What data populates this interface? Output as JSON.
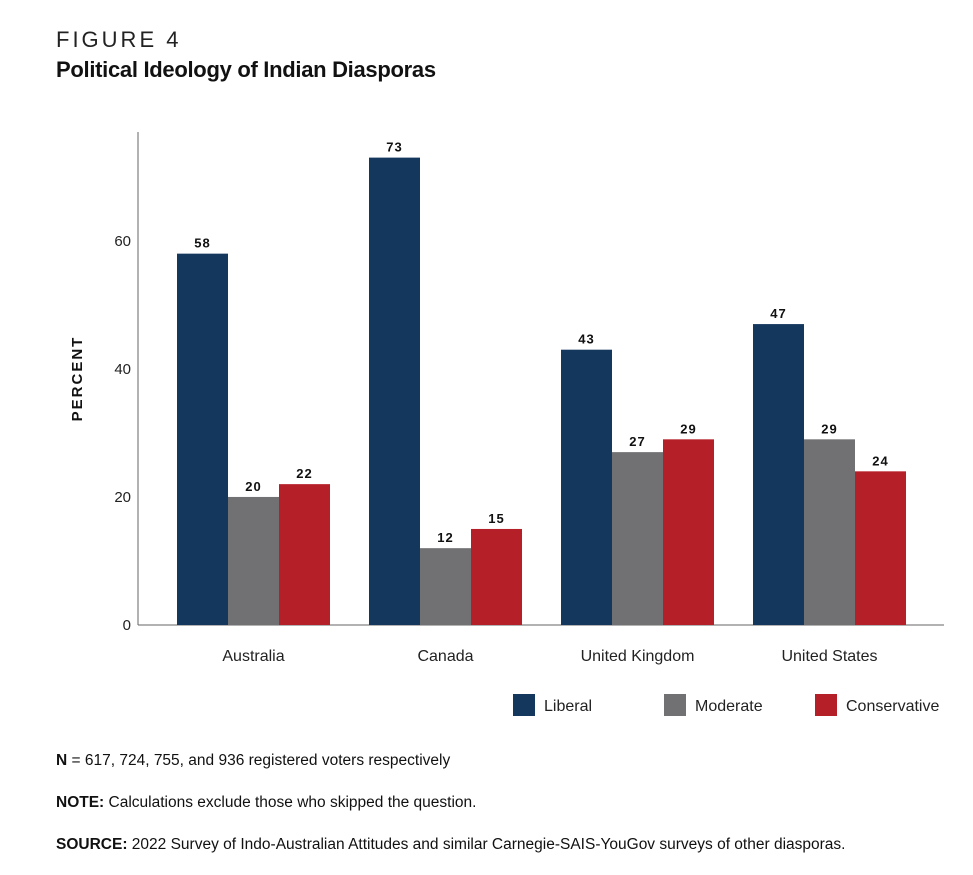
{
  "figure": {
    "label": "FIGURE 4",
    "title": "Political Ideology of Indian Diasporas"
  },
  "notes": {
    "n_label": "N",
    "n_text": " = 617, 724, 755, and 936 registered voters respectively",
    "note_label": "NOTE:",
    "note_text": " Calculations exclude those who skipped the question.",
    "source_label": "SOURCE:",
    "source_text": " 2022 Survey of Indo-Australian Attitudes and similar Carnegie-SAIS-YouGov surveys of other diasporas."
  },
  "chart_data": {
    "type": "bar",
    "title": "Political Ideology of Indian Diasporas",
    "xlabel": "",
    "ylabel": "PERCENT",
    "categories": [
      "Australia",
      "Canada",
      "United Kingdom",
      "United States"
    ],
    "series": [
      {
        "name": "Liberal",
        "color": "#14375e",
        "values": [
          58,
          73,
          43,
          47
        ]
      },
      {
        "name": "Moderate",
        "color": "#717073",
        "values": [
          20,
          12,
          27,
          29
        ]
      },
      {
        "name": "Conservative",
        "color": "#b51f28",
        "values": [
          22,
          15,
          29,
          24
        ]
      }
    ],
    "ylim": [
      0,
      77
    ],
    "yticks": [
      0,
      20,
      40,
      60
    ],
    "grid": false,
    "legend_position": "bottom-right",
    "data_labels": true
  }
}
